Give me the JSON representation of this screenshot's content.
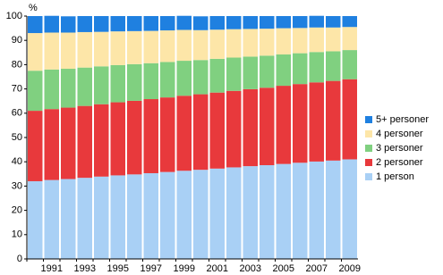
{
  "chart_data": {
    "type": "stacked-bar",
    "y_label": "%",
    "categories": [
      null,
      "1991",
      null,
      "1993",
      null,
      "1995",
      null,
      "1997",
      null,
      "1999",
      null,
      "2001",
      null,
      "2003",
      null,
      "2005",
      null,
      "2007",
      null,
      "2009"
    ],
    "series": [
      {
        "name": "1 person",
        "color": "#a9d0f5",
        "values": [
          32,
          32.5,
          32.9,
          33.4,
          33.9,
          34.4,
          34.8,
          35.3,
          35.8,
          36.3,
          36.7,
          37.2,
          37.7,
          38.2,
          38.6,
          39.1,
          39.6,
          40.1,
          40.5,
          41
        ]
      },
      {
        "name": "2 personer",
        "color": "#e8393c",
        "values": [
          29,
          29.2,
          29.4,
          29.6,
          29.8,
          30.1,
          30.3,
          30.5,
          30.7,
          30.9,
          31.1,
          31.3,
          31.5,
          31.7,
          31.9,
          32.2,
          32.4,
          32.6,
          32.8,
          33
        ]
      },
      {
        "name": "3 personer",
        "color": "#80d080",
        "values": [
          16.5,
          16.3,
          16,
          15.8,
          15.6,
          15.3,
          15.1,
          14.8,
          14.6,
          14.4,
          14.1,
          13.9,
          13.7,
          13.4,
          13.2,
          12.9,
          12.7,
          12.5,
          12.2,
          12
        ]
      },
      {
        "name": "4 personer",
        "color": "#fde6a8",
        "values": [
          15.5,
          15.2,
          14.9,
          14.6,
          14.2,
          13.9,
          13.6,
          13.3,
          13,
          12.7,
          12.3,
          12,
          11.7,
          11.4,
          11.1,
          10.8,
          10.4,
          10.1,
          9.8,
          9.5
        ]
      },
      {
        "name": "5+ personer",
        "color": "#1f80e0",
        "values": [
          7,
          6.9,
          6.7,
          6.6,
          6.5,
          6.3,
          6.2,
          6.1,
          5.9,
          5.8,
          5.7,
          5.6,
          5.4,
          5.3,
          5.2,
          5,
          4.9,
          4.8,
          4.7,
          4.5
        ]
      }
    ],
    "ylim": [
      0,
      100
    ],
    "yticks": [
      0,
      10,
      20,
      30,
      40,
      50,
      60,
      70,
      80,
      90,
      100
    ],
    "grid": false,
    "legend": "right"
  }
}
